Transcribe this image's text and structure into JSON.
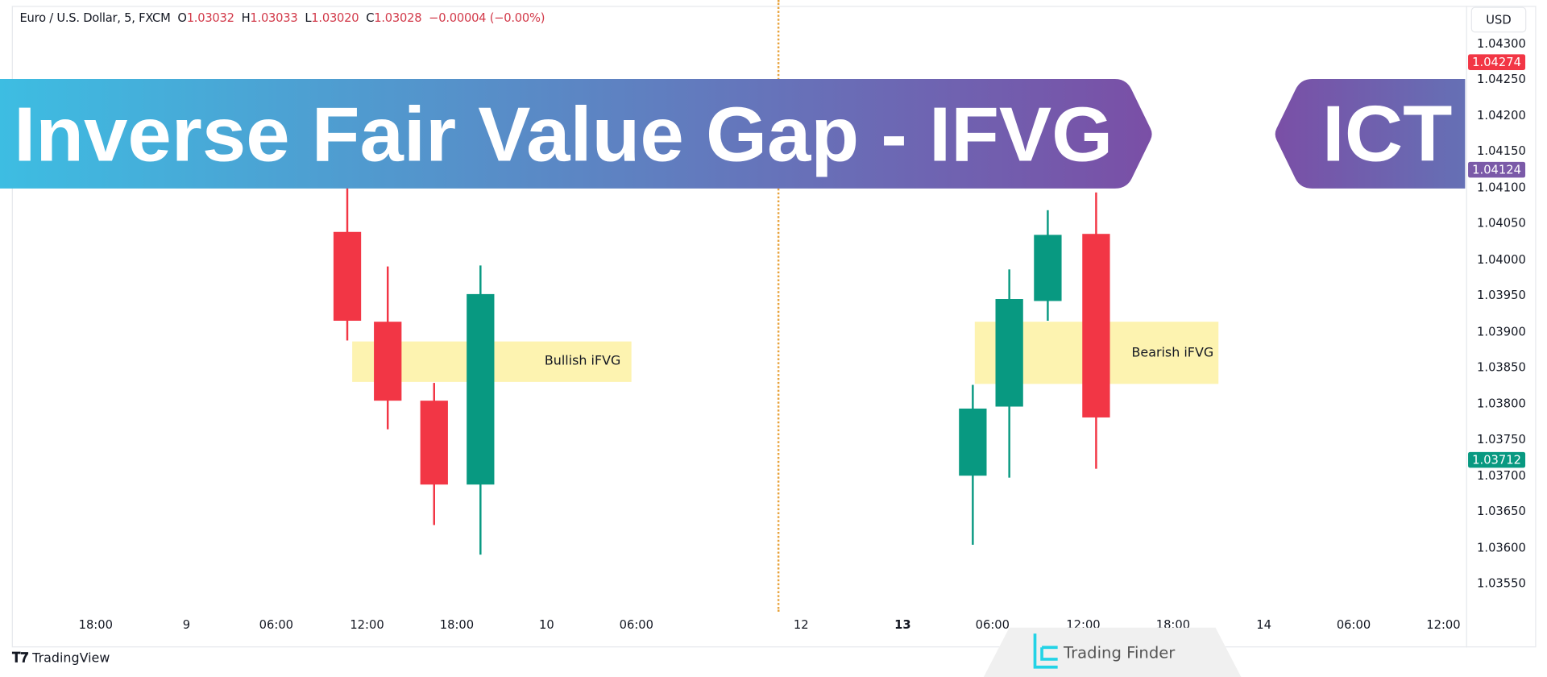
{
  "header": {
    "symbol": "Euro / U.S. Dollar, 5, FXCM",
    "open_label": "O",
    "open": "1.03032",
    "high_label": "H",
    "high": "1.03033",
    "low_label": "L",
    "low": "1.03020",
    "close_label": "C",
    "close": "1.03028",
    "change": "−0.00004 (−0.00%)"
  },
  "currency_button": "USD",
  "banner": {
    "title": "Inverse Fair Value Gap - IFVG",
    "badge": "ICT",
    "colors": {
      "start": "#3dbde2",
      "end": "#7a4fa6"
    }
  },
  "price_axis": {
    "ticks": [
      "1.04300",
      "1.04250",
      "1.04200",
      "1.04150",
      "1.04100",
      "1.04050",
      "1.04000",
      "1.03950",
      "1.03900",
      "1.03850",
      "1.03800",
      "1.03750",
      "1.03700",
      "1.03650",
      "1.03600",
      "1.03550"
    ],
    "tags": [
      {
        "value": "1.04274",
        "color": "#f23645"
      },
      {
        "value": "1.04124",
        "color": "#7b5aa8"
      },
      {
        "value": "1.03712",
        "color": "#089981"
      }
    ]
  },
  "time_axis": {
    "ticks": [
      {
        "time": "8 18:00",
        "label": "18:00",
        "bold": false
      },
      {
        "time": "9 00:00",
        "label": "9",
        "bold": false
      },
      {
        "time": "9 06:00",
        "label": "06:00",
        "bold": false
      },
      {
        "time": "9 12:00",
        "label": "12:00",
        "bold": false
      },
      {
        "time": "9 18:00",
        "label": "18:00",
        "bold": false
      },
      {
        "time": "10 00:00",
        "label": "10",
        "bold": false
      },
      {
        "time": "10 06:00",
        "label": "06:00",
        "bold": false
      },
      {
        "time": "12 00:00",
        "label": "12",
        "bold": false
      },
      {
        "time": "13 00:00",
        "label": "13",
        "bold": true
      },
      {
        "time": "13 06:00",
        "label": "06:00",
        "bold": false
      },
      {
        "time": "13 12:00",
        "label": "12:00",
        "bold": false
      },
      {
        "time": "13 18:00",
        "label": "18:00",
        "bold": false
      },
      {
        "time": "14 00:00",
        "label": "14",
        "bold": false
      },
      {
        "time": "14 06:00",
        "label": "06:00",
        "bold": false
      },
      {
        "time": "14 12:00",
        "label": "12:00",
        "bold": false
      }
    ],
    "separator_time": "11 18:00"
  },
  "colors": {
    "up": "#089981",
    "down": "#f23645",
    "zone": "#fdf3b0",
    "separator": "#e8a33c"
  },
  "candles": [
    {
      "time": "9 10:40",
      "open": 1.04038,
      "high": 1.041,
      "low": 1.03887,
      "close": 1.03915
    },
    {
      "time": "9 13:25",
      "open": 1.03913,
      "high": 1.0399,
      "low": 1.03764,
      "close": 1.03804
    },
    {
      "time": "9 16:30",
      "open": 1.03804,
      "high": 1.03828,
      "low": 1.03631,
      "close": 1.03687
    },
    {
      "time": "9 19:35",
      "open": 1.03687,
      "high": 1.03992,
      "low": 1.0359,
      "close": 1.03952
    },
    {
      "time": "13 04:40",
      "open": 1.03699,
      "high": 1.03826,
      "low": 1.03604,
      "close": 1.03793
    },
    {
      "time": "13 07:05",
      "open": 1.03795,
      "high": 1.03986,
      "low": 1.03697,
      "close": 1.03945
    },
    {
      "time": "13 09:40",
      "open": 1.03942,
      "high": 1.04068,
      "low": 1.03915,
      "close": 1.04034
    },
    {
      "time": "13 12:50",
      "open": 1.04035,
      "high": 1.04093,
      "low": 1.03709,
      "close": 1.0378
    }
  ],
  "zones": [
    {
      "label": "Bullish iFVG",
      "start": "9 11:00",
      "end": "10 05:40",
      "top": 1.03886,
      "bottom": 1.0383
    },
    {
      "label": "Bearish iFVG",
      "start": "13 04:50",
      "end": "13 21:00",
      "top": 1.03913,
      "bottom": 1.03827
    }
  ],
  "footer": {
    "tradingview": "TradingView",
    "watermark": "Trading Finder"
  }
}
